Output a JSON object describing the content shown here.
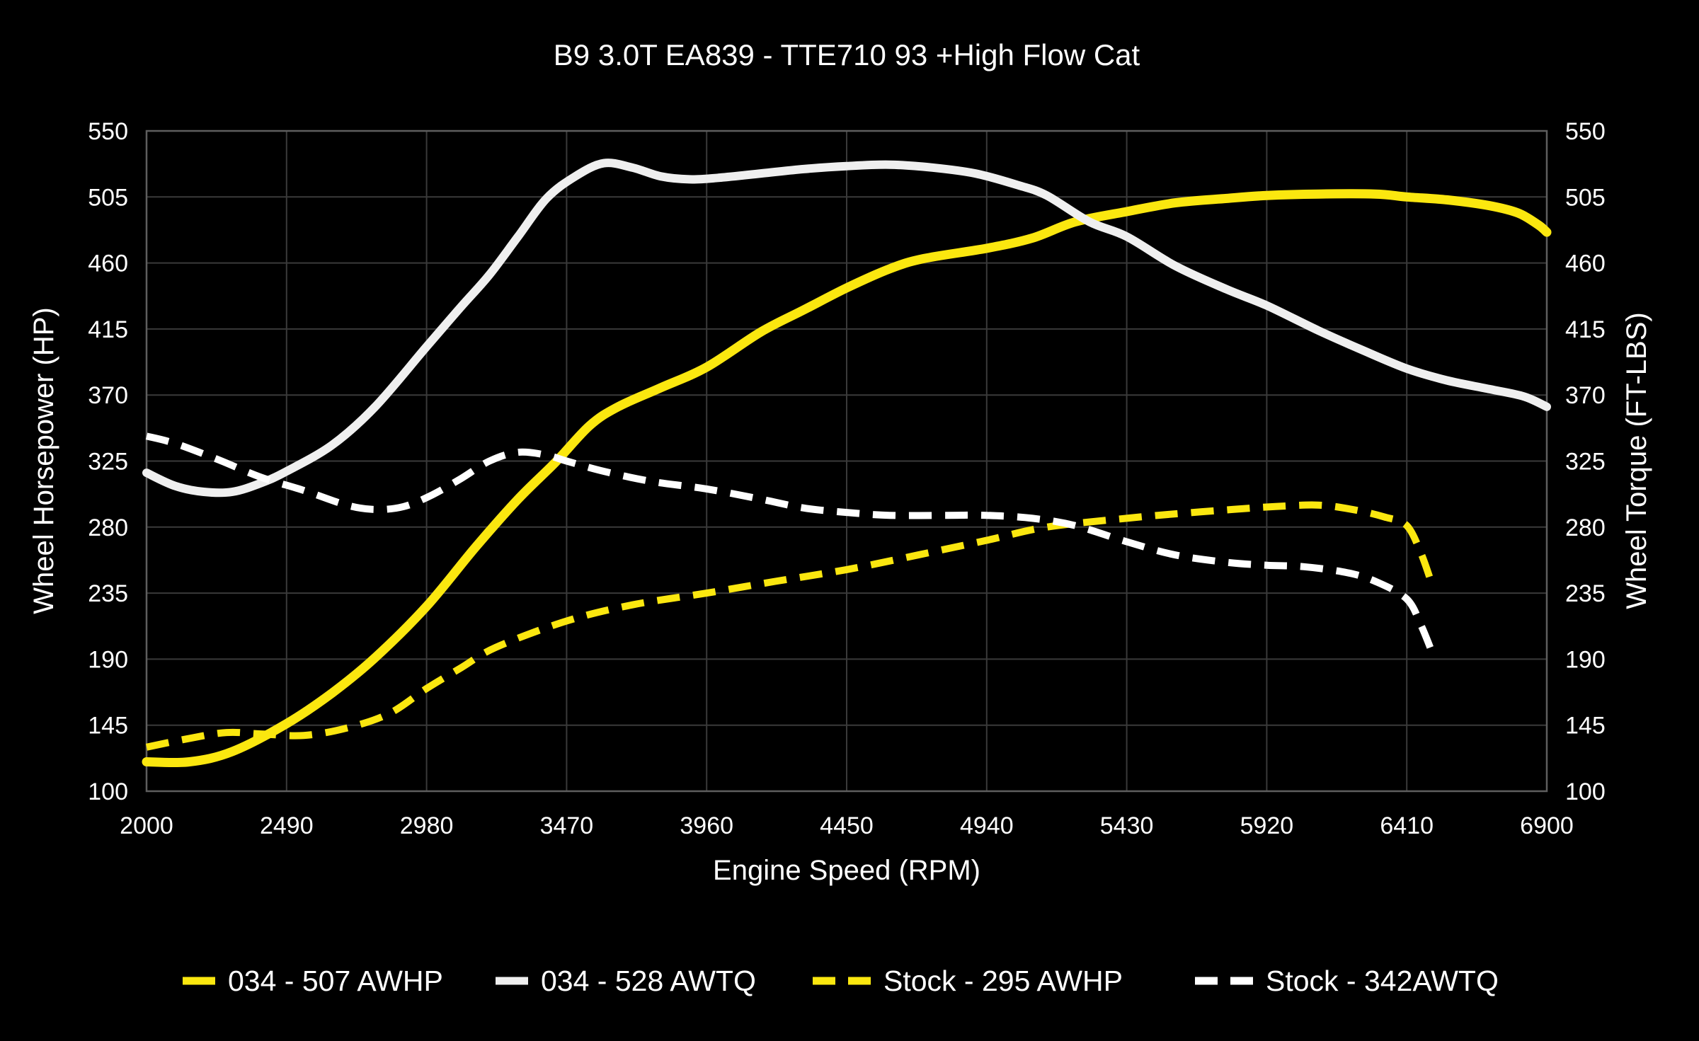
{
  "title": "B9 3.0T EA839 - TTE710 93 +High Flow Cat",
  "chart_data": {
    "type": "line",
    "title": "B9 3.0T EA839 - TTE710 93 +High Flow Cat",
    "xlabel": "Engine Speed (RPM)",
    "ylabel_left": "Wheel Horsepower (HP)",
    "ylabel_right": "Wheel Torque (FT-LBS)",
    "xlim": [
      2000,
      6900
    ],
    "ylim": [
      100,
      550
    ],
    "xticks": [
      2000,
      2490,
      2980,
      3470,
      3960,
      4450,
      4940,
      5430,
      5920,
      6410,
      6900
    ],
    "yticks": [
      100,
      145,
      190,
      235,
      280,
      325,
      370,
      415,
      460,
      505,
      550
    ],
    "grid": true,
    "legend_position": "bottom",
    "colors": {
      "yellow": "#FBE70F",
      "white": "#EFEFEF",
      "white_dashed": "#FFFFFF",
      "grid": "#3A3A3A",
      "frame": "#5E5E5E",
      "background": "#000000",
      "text": "#FFFFFF"
    },
    "series": [
      {
        "name": "034 - 507 AWHP",
        "axis": "left",
        "color": "yellow",
        "style": "solid",
        "peak": 507,
        "points": [
          [
            2000,
            120
          ],
          [
            2150,
            120
          ],
          [
            2300,
            127
          ],
          [
            2490,
            146
          ],
          [
            2650,
            167
          ],
          [
            2800,
            191
          ],
          [
            2980,
            226
          ],
          [
            3150,
            266
          ],
          [
            3300,
            299
          ],
          [
            3430,
            324
          ],
          [
            3550,
            349
          ],
          [
            3650,
            362
          ],
          [
            3800,
            375
          ],
          [
            3960,
            389
          ],
          [
            4150,
            413
          ],
          [
            4300,
            428
          ],
          [
            4450,
            443
          ],
          [
            4600,
            456
          ],
          [
            4720,
            463
          ],
          [
            4940,
            470
          ],
          [
            5100,
            477
          ],
          [
            5250,
            488
          ],
          [
            5430,
            495
          ],
          [
            5600,
            501
          ],
          [
            5780,
            504
          ],
          [
            5920,
            506
          ],
          [
            6100,
            507
          ],
          [
            6300,
            507
          ],
          [
            6410,
            505
          ],
          [
            6550,
            503
          ],
          [
            6700,
            499
          ],
          [
            6800,
            494
          ],
          [
            6870,
            486
          ],
          [
            6900,
            481
          ]
        ]
      },
      {
        "name": "034 - 528 AWTQ",
        "axis": "right",
        "color": "white",
        "style": "solid",
        "peak": 528,
        "points": [
          [
            2000,
            317
          ],
          [
            2100,
            308
          ],
          [
            2200,
            304
          ],
          [
            2300,
            304
          ],
          [
            2400,
            310
          ],
          [
            2490,
            318
          ],
          [
            2650,
            336
          ],
          [
            2800,
            362
          ],
          [
            2980,
            403
          ],
          [
            3100,
            430
          ],
          [
            3200,
            452
          ],
          [
            3300,
            478
          ],
          [
            3400,
            504
          ],
          [
            3500,
            519
          ],
          [
            3600,
            528
          ],
          [
            3700,
            525
          ],
          [
            3800,
            519
          ],
          [
            3900,
            517
          ],
          [
            4000,
            518
          ],
          [
            4150,
            521
          ],
          [
            4300,
            524
          ],
          [
            4450,
            526
          ],
          [
            4600,
            527
          ],
          [
            4750,
            525
          ],
          [
            4900,
            521
          ],
          [
            5050,
            513
          ],
          [
            5150,
            506
          ],
          [
            5300,
            488
          ],
          [
            5430,
            478
          ],
          [
            5600,
            458
          ],
          [
            5780,
            442
          ],
          [
            5920,
            431
          ],
          [
            6100,
            414
          ],
          [
            6250,
            401
          ],
          [
            6410,
            388
          ],
          [
            6550,
            380
          ],
          [
            6700,
            374
          ],
          [
            6820,
            369
          ],
          [
            6900,
            362
          ]
        ]
      },
      {
        "name": "Stock - 295 AWHP",
        "axis": "left",
        "color": "yellow",
        "style": "dashed",
        "peak": 295,
        "points": [
          [
            2000,
            130
          ],
          [
            2150,
            136
          ],
          [
            2280,
            140
          ],
          [
            2400,
            139
          ],
          [
            2550,
            138
          ],
          [
            2700,
            143
          ],
          [
            2850,
            153
          ],
          [
            2980,
            170
          ],
          [
            3100,
            184
          ],
          [
            3222,
            198
          ],
          [
            3470,
            216
          ],
          [
            3700,
            227
          ],
          [
            3960,
            235
          ],
          [
            4200,
            243
          ],
          [
            4450,
            251
          ],
          [
            4700,
            261
          ],
          [
            4940,
            271
          ],
          [
            5150,
            280
          ],
          [
            5430,
            286
          ],
          [
            5600,
            289
          ],
          [
            5800,
            292
          ],
          [
            5950,
            294
          ],
          [
            6100,
            295
          ],
          [
            6220,
            292
          ],
          [
            6330,
            287
          ],
          [
            6410,
            281
          ],
          [
            6460,
            262
          ],
          [
            6500,
            240
          ]
        ]
      },
      {
        "name": "Stock - 342AWTQ",
        "axis": "right",
        "color": "white_dashed",
        "style": "dashed",
        "peak": 342,
        "points": [
          [
            2000,
            342
          ],
          [
            2100,
            337
          ],
          [
            2250,
            326
          ],
          [
            2400,
            314
          ],
          [
            2550,
            305
          ],
          [
            2700,
            295
          ],
          [
            2800,
            292
          ],
          [
            2900,
            294
          ],
          [
            3000,
            302
          ],
          [
            3100,
            313
          ],
          [
            3200,
            325
          ],
          [
            3300,
            331
          ],
          [
            3400,
            329
          ],
          [
            3470,
            325
          ],
          [
            3600,
            318
          ],
          [
            3770,
            311
          ],
          [
            3960,
            306
          ],
          [
            4150,
            299
          ],
          [
            4300,
            293
          ],
          [
            4450,
            290
          ],
          [
            4600,
            288
          ],
          [
            4800,
            288
          ],
          [
            4940,
            288
          ],
          [
            5100,
            286
          ],
          [
            5250,
            281
          ],
          [
            5430,
            270
          ],
          [
            5600,
            261
          ],
          [
            5780,
            256
          ],
          [
            5920,
            254
          ],
          [
            6050,
            253
          ],
          [
            6200,
            249
          ],
          [
            6300,
            243
          ],
          [
            6410,
            231
          ],
          [
            6460,
            213
          ],
          [
            6500,
            194
          ]
        ]
      }
    ]
  }
}
